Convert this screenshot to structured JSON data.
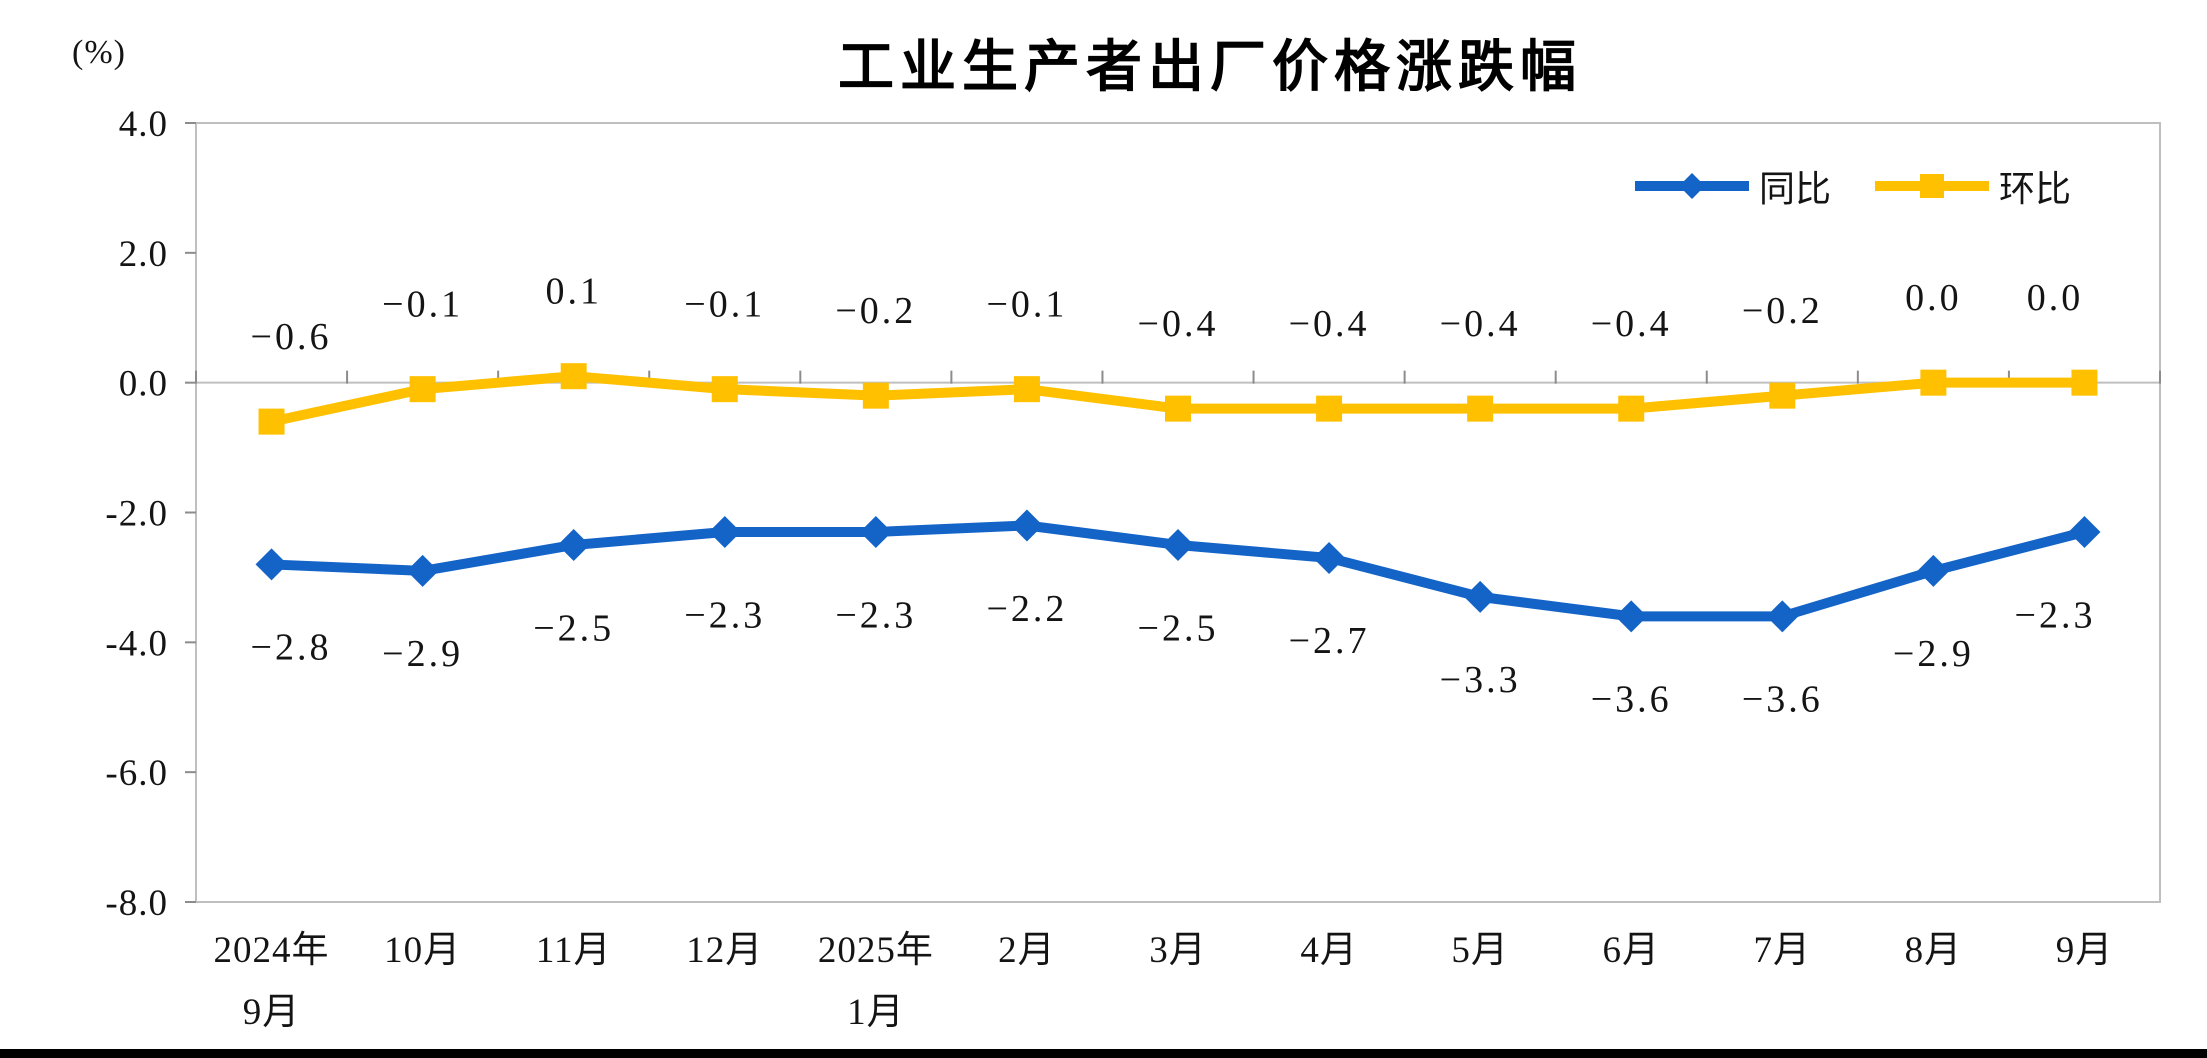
{
  "title": "工业生产者出厂价格涨跌幅",
  "unit_label": "(%)",
  "legend": {
    "position": "top-right",
    "items": [
      {
        "label": "同比",
        "color": "#1464C8",
        "marker": "diamond"
      },
      {
        "label": "环比",
        "color": "#FFC000",
        "marker": "square"
      }
    ]
  },
  "chart_data": {
    "type": "line",
    "title": "工业生产者出厂价格涨跌幅",
    "ylabel": "(%)",
    "ylim": [
      -8.0,
      4.0
    ],
    "ytick_labels": [
      "4.0",
      "2.0",
      "0.0",
      "-2.0",
      "-4.0",
      "-6.0",
      "-8.0"
    ],
    "grid": "zero-line-and-frame-only",
    "legend_position": "top-right",
    "categories": [
      [
        "2024年",
        "9月"
      ],
      [
        "10月"
      ],
      [
        "11月"
      ],
      [
        "12月"
      ],
      [
        "2025年",
        "1月"
      ],
      [
        "2月"
      ],
      [
        "3月"
      ],
      [
        "4月"
      ],
      [
        "5月"
      ],
      [
        "6月"
      ],
      [
        "7月"
      ],
      [
        "8月"
      ],
      [
        "9月"
      ]
    ],
    "series": [
      {
        "name": "同比",
        "color": "#1464C8",
        "marker": "diamond",
        "label_side": "below",
        "values": [
          -2.8,
          -2.9,
          -2.5,
          -2.3,
          -2.3,
          -2.2,
          -2.5,
          -2.7,
          -3.3,
          -3.6,
          -3.6,
          -2.9,
          -2.3
        ]
      },
      {
        "name": "环比",
        "color": "#FFC000",
        "marker": "square",
        "label_side": "above",
        "values": [
          -0.6,
          -0.1,
          0.1,
          -0.1,
          -0.2,
          -0.1,
          -0.4,
          -0.4,
          -0.4,
          -0.4,
          -0.2,
          0.0,
          0.0
        ]
      }
    ]
  },
  "colors": {
    "axis_frame": "#BFBFBF",
    "tick": "#8C8C8C",
    "text": "#141414",
    "bottom_bar": "#000000"
  }
}
